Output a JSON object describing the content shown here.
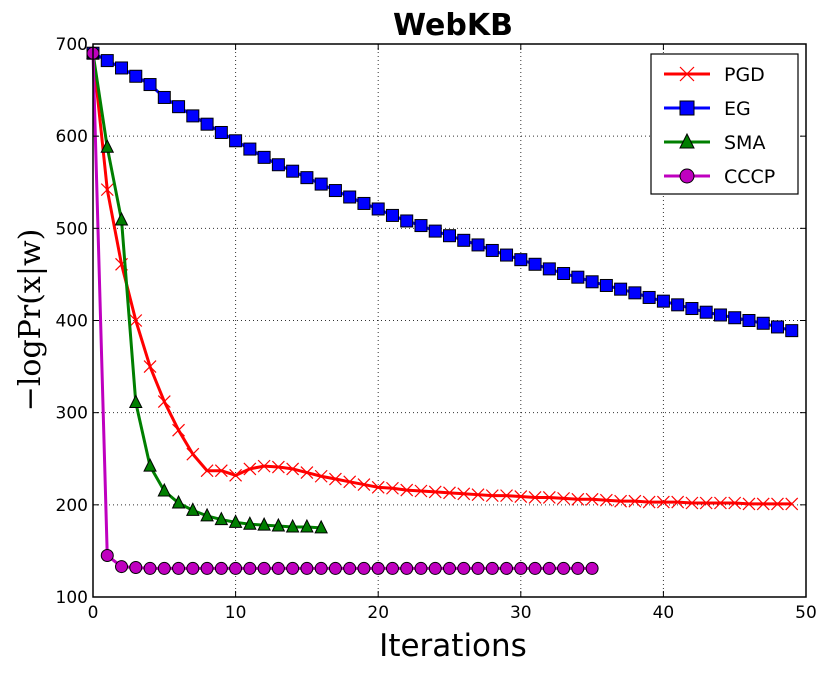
{
  "chart_data": {
    "type": "line",
    "title": "WebKB",
    "xlabel": "Iterations",
    "ylabel": "−logPr(x|w)",
    "xlim": [
      0,
      50
    ],
    "ylim": [
      100,
      700
    ],
    "xticks": [
      0,
      10,
      20,
      30,
      40,
      50
    ],
    "yticks": [
      100,
      200,
      300,
      400,
      500,
      600,
      700
    ],
    "grid": true,
    "legend_position": "top-right",
    "series": [
      {
        "name": "PGD",
        "color": "#ff0000",
        "marker": "x",
        "x": [
          0,
          1,
          2,
          3,
          4,
          5,
          6,
          7,
          8,
          9,
          10,
          11,
          12,
          13,
          14,
          15,
          16,
          17,
          18,
          19,
          20,
          21,
          22,
          23,
          24,
          25,
          26,
          27,
          28,
          29,
          30,
          31,
          32,
          33,
          34,
          35,
          36,
          37,
          38,
          39,
          40,
          41,
          42,
          43,
          44,
          45,
          46,
          47,
          48,
          49
        ],
        "values": [
          690,
          542,
          461,
          400,
          350,
          312,
          281,
          255,
          237,
          237,
          232,
          239,
          242,
          241,
          239,
          235,
          231,
          228,
          225,
          222,
          219,
          218,
          216,
          215,
          214,
          213,
          212,
          211,
          210,
          210,
          209,
          208,
          208,
          207,
          206,
          206,
          205,
          204,
          204,
          203,
          203,
          203,
          202,
          202,
          202,
          202,
          201,
          201,
          201,
          201
        ]
      },
      {
        "name": "EG",
        "color": "#0000ff",
        "marker": "square",
        "x": [
          0,
          1,
          2,
          3,
          4,
          5,
          6,
          7,
          8,
          9,
          10,
          11,
          12,
          13,
          14,
          15,
          16,
          17,
          18,
          19,
          20,
          21,
          22,
          23,
          24,
          25,
          26,
          27,
          28,
          29,
          30,
          31,
          32,
          33,
          34,
          35,
          36,
          37,
          38,
          39,
          40,
          41,
          42,
          43,
          44,
          45,
          46,
          47,
          48,
          49
        ],
        "values": [
          690,
          682,
          674,
          665,
          656,
          642,
          632,
          622,
          613,
          604,
          595,
          586,
          577,
          569,
          562,
          555,
          548,
          541,
          534,
          527,
          521,
          514,
          508,
          503,
          497,
          492,
          487,
          482,
          476,
          471,
          466,
          461,
          456,
          451,
          447,
          442,
          438,
          434,
          430,
          425,
          421,
          417,
          413,
          409,
          406,
          403,
          400,
          397,
          393,
          389
        ]
      },
      {
        "name": "SMA",
        "color": "#007f00",
        "marker": "triangle",
        "x": [
          0,
          1,
          2,
          3,
          4,
          5,
          6,
          7,
          8,
          9,
          10,
          11,
          12,
          13,
          14,
          15,
          16
        ],
        "values": [
          690,
          588,
          509,
          311,
          242,
          215,
          202,
          194,
          188,
          184,
          181,
          179,
          178,
          177,
          176,
          176,
          175
        ]
      },
      {
        "name": "CCCP",
        "color": "#bf00bf",
        "marker": "circle",
        "x": [
          0,
          1,
          2,
          3,
          4,
          5,
          6,
          7,
          8,
          9,
          10,
          11,
          12,
          13,
          14,
          15,
          16,
          17,
          18,
          19,
          20,
          21,
          22,
          23,
          24,
          25,
          26,
          27,
          28,
          29,
          30,
          31,
          32,
          33,
          34,
          35
        ],
        "values": [
          690,
          145,
          133,
          132,
          131,
          131,
          131,
          131,
          131,
          131,
          131,
          131,
          131,
          131,
          131,
          131,
          131,
          131,
          131,
          131,
          131,
          131,
          131,
          131,
          131,
          131,
          131,
          131,
          131,
          131,
          131,
          131,
          131,
          131,
          131,
          131
        ]
      }
    ]
  }
}
